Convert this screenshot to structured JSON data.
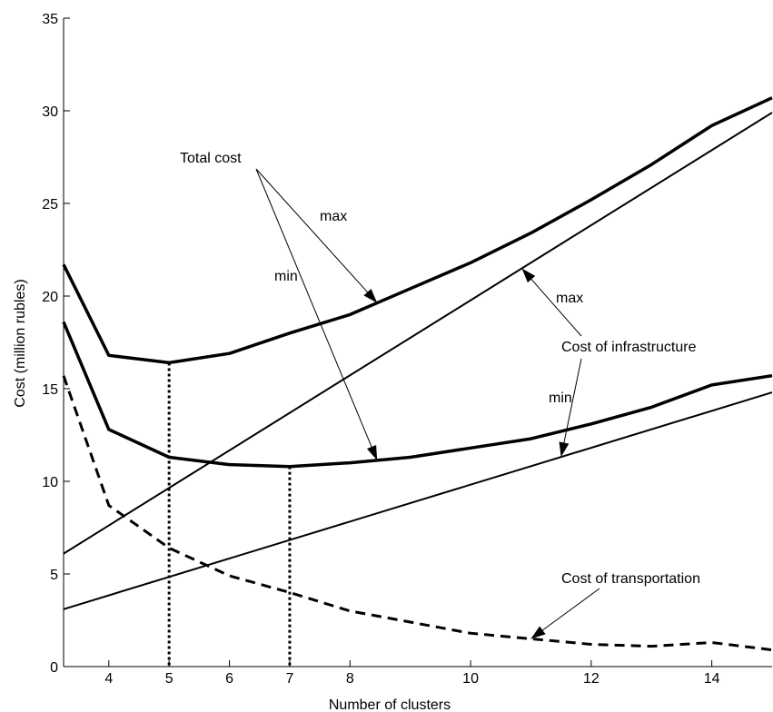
{
  "chart_data": {
    "type": "line",
    "title": "",
    "xlabel": "Number of clusters",
    "ylabel": "Cost (million rubles)",
    "xlim": [
      3.25,
      15
    ],
    "ylim": [
      0,
      35
    ],
    "xticks": [
      4,
      5,
      6,
      7,
      8,
      10,
      12,
      14
    ],
    "yticks": [
      0,
      5,
      10,
      15,
      20,
      25,
      30,
      35
    ],
    "grid": false,
    "legend": "none",
    "series": [
      {
        "key": "total_max",
        "style": "thick",
        "x": [
          3.25,
          4,
          5,
          6,
          7,
          8,
          9,
          10,
          11,
          12,
          13,
          14,
          15
        ],
        "y": [
          21.7,
          16.8,
          16.4,
          16.9,
          18.0,
          19.0,
          20.4,
          21.8,
          23.4,
          25.2,
          27.1,
          29.2,
          30.7
        ]
      },
      {
        "key": "total_min",
        "style": "thick",
        "x": [
          3.25,
          4,
          5,
          6,
          7,
          8,
          9,
          10,
          11,
          12,
          13,
          14,
          15
        ],
        "y": [
          18.6,
          12.8,
          11.3,
          10.9,
          10.8,
          11.0,
          11.3,
          11.8,
          12.3,
          13.1,
          14.0,
          15.2,
          15.7
        ]
      },
      {
        "key": "infra_max",
        "style": "thin",
        "x": [
          3.25,
          15
        ],
        "y": [
          6.1,
          29.9
        ]
      },
      {
        "key": "infra_min",
        "style": "thin",
        "x": [
          3.25,
          15
        ],
        "y": [
          3.1,
          14.8
        ]
      },
      {
        "key": "transport",
        "style": "dashed",
        "x": [
          3.25,
          4,
          5,
          6,
          7,
          8,
          9,
          10,
          11,
          12,
          13,
          14,
          15
        ],
        "y": [
          15.7,
          8.7,
          6.4,
          4.9,
          4.0,
          3.0,
          2.4,
          1.8,
          1.5,
          1.2,
          1.1,
          1.3,
          0.9
        ]
      }
    ],
    "guides": [
      {
        "x": 5,
        "y": 16.4
      },
      {
        "x": 7,
        "y": 10.8
      }
    ],
    "annotations": {
      "total_cost": "Total cost",
      "max_total": "max",
      "min_total": "min",
      "infrastructure": "Cost of infrastructure",
      "max_infra": "max",
      "min_infra": "min",
      "transportation": "Cost of transportation"
    }
  }
}
